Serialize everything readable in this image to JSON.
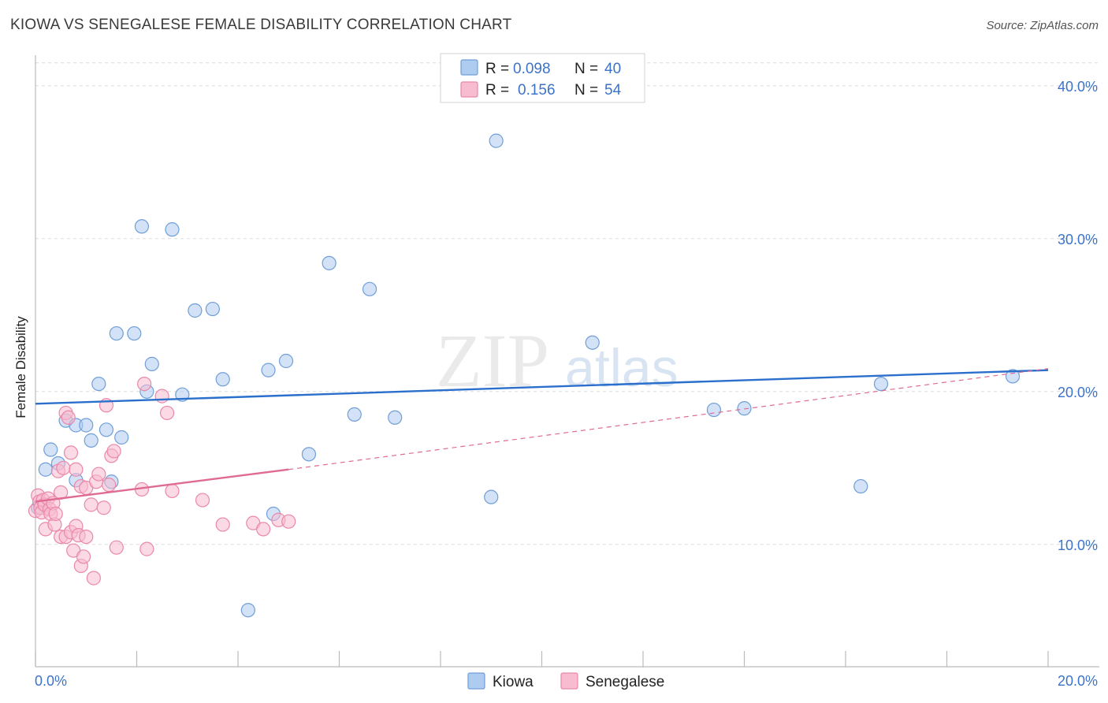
{
  "header": {
    "title": "KIOWA VS SENEGALESE FEMALE DISABILITY CORRELATION CHART",
    "source": "Source: ZipAtlas.com"
  },
  "watermark": {
    "zip": "ZIP",
    "atlas": "atlas"
  },
  "legend": {
    "r_label": "R =",
    "n_label": "N =",
    "kiowa": {
      "r": "0.098",
      "n": "40"
    },
    "senegalese": {
      "r": "0.156",
      "n": "54"
    }
  },
  "colors": {
    "kiowa_fill": "#aecbf0",
    "kiowa_stroke": "#6f9fd8",
    "kiowa_line": "#2b6fcc",
    "senegalese_fill": "#f7bcd0",
    "senegalese_stroke": "#ea88a9",
    "senegalese_line": "#e06a93",
    "accent_text": "#3c73c8"
  },
  "chart_data": {
    "type": "scatter",
    "title": "KIOWA VS SENEGALESE FEMALE DISABILITY CORRELATION CHART",
    "xlabel": "",
    "ylabel": "Female Disability",
    "xlim": [
      0,
      20
    ],
    "ylim": [
      2,
      42
    ],
    "x_tick_labels": [
      "0.0%",
      "20.0%"
    ],
    "y_ticks": [
      10,
      20,
      30,
      40
    ],
    "y_tick_labels": [
      "10.0%",
      "20.0%",
      "30.0%",
      "40.0%"
    ],
    "grid": true,
    "series": [
      {
        "name": "Kiowa",
        "r": 0.098,
        "n": 40,
        "trend": {
          "x": [
            0,
            20
          ],
          "y": [
            19.2,
            21.4
          ]
        },
        "points": [
          [
            0.05,
            12.4
          ],
          [
            0.2,
            14.9
          ],
          [
            0.3,
            16.2
          ],
          [
            0.45,
            15.3
          ],
          [
            0.6,
            18.1
          ],
          [
            0.8,
            17.8
          ],
          [
            0.8,
            14.2
          ],
          [
            1.0,
            17.8
          ],
          [
            1.1,
            16.8
          ],
          [
            1.25,
            20.5
          ],
          [
            1.4,
            17.5
          ],
          [
            1.5,
            14.1
          ],
          [
            1.6,
            23.8
          ],
          [
            1.7,
            17.0
          ],
          [
            1.95,
            23.8
          ],
          [
            2.1,
            30.8
          ],
          [
            2.2,
            20.0
          ],
          [
            2.3,
            21.8
          ],
          [
            2.7,
            30.6
          ],
          [
            2.9,
            19.8
          ],
          [
            3.15,
            25.3
          ],
          [
            3.5,
            25.4
          ],
          [
            3.7,
            20.8
          ],
          [
            4.2,
            5.7
          ],
          [
            4.6,
            21.4
          ],
          [
            4.7,
            12.0
          ],
          [
            4.95,
            22.0
          ],
          [
            5.4,
            15.9
          ],
          [
            5.8,
            28.4
          ],
          [
            6.3,
            18.5
          ],
          [
            6.6,
            26.7
          ],
          [
            7.1,
            18.3
          ],
          [
            9.0,
            13.1
          ],
          [
            9.1,
            36.4
          ],
          [
            11.0,
            23.2
          ],
          [
            13.4,
            18.8
          ],
          [
            14.0,
            18.9
          ],
          [
            16.3,
            13.8
          ],
          [
            16.7,
            20.5
          ],
          [
            19.3,
            21.0
          ]
        ]
      },
      {
        "name": "Senegalese",
        "r": 0.156,
        "n": 54,
        "trend_solid": {
          "x": [
            0,
            5.0
          ],
          "y": [
            12.8,
            14.9
          ]
        },
        "trend_dashed": {
          "x": [
            5.0,
            20
          ],
          "y": [
            14.9,
            21.5
          ]
        },
        "points": [
          [
            0.0,
            12.2
          ],
          [
            0.05,
            13.2
          ],
          [
            0.08,
            12.8
          ],
          [
            0.1,
            12.4
          ],
          [
            0.12,
            12.1
          ],
          [
            0.15,
            12.9
          ],
          [
            0.18,
            12.6
          ],
          [
            0.2,
            11.0
          ],
          [
            0.25,
            13.0
          ],
          [
            0.28,
            12.3
          ],
          [
            0.3,
            12.0
          ],
          [
            0.35,
            12.7
          ],
          [
            0.38,
            11.3
          ],
          [
            0.4,
            12.0
          ],
          [
            0.45,
            14.8
          ],
          [
            0.5,
            10.5
          ],
          [
            0.5,
            13.4
          ],
          [
            0.55,
            15.0
          ],
          [
            0.6,
            10.5
          ],
          [
            0.6,
            18.6
          ],
          [
            0.65,
            18.3
          ],
          [
            0.7,
            16.0
          ],
          [
            0.7,
            10.8
          ],
          [
            0.75,
            9.6
          ],
          [
            0.8,
            14.9
          ],
          [
            0.8,
            11.2
          ],
          [
            0.85,
            10.6
          ],
          [
            0.9,
            8.6
          ],
          [
            0.9,
            13.8
          ],
          [
            0.95,
            9.2
          ],
          [
            1.0,
            13.7
          ],
          [
            1.0,
            10.5
          ],
          [
            1.1,
            12.6
          ],
          [
            1.15,
            7.8
          ],
          [
            1.2,
            14.1
          ],
          [
            1.25,
            14.6
          ],
          [
            1.35,
            12.4
          ],
          [
            1.4,
            19.1
          ],
          [
            1.45,
            13.9
          ],
          [
            1.5,
            15.8
          ],
          [
            1.55,
            16.1
          ],
          [
            1.6,
            9.8
          ],
          [
            2.1,
            13.6
          ],
          [
            2.15,
            20.5
          ],
          [
            2.2,
            9.7
          ],
          [
            2.5,
            19.7
          ],
          [
            2.6,
            18.6
          ],
          [
            2.7,
            13.5
          ],
          [
            3.3,
            12.9
          ],
          [
            3.7,
            11.3
          ],
          [
            4.3,
            11.4
          ],
          [
            4.5,
            11.0
          ],
          [
            4.8,
            11.6
          ],
          [
            5.0,
            11.5
          ]
        ]
      }
    ],
    "legend_entries": [
      "Kiowa",
      "Senegalese"
    ]
  }
}
